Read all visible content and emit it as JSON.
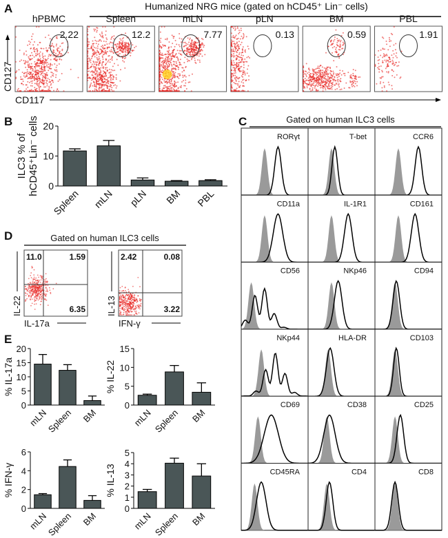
{
  "panel_labels": {
    "a": "A",
    "b": "B",
    "c": "C",
    "d": "D",
    "e": "E"
  },
  "panel_a": {
    "group_title": "Humanized NRG mice (gated on hCD45⁺ Lin⁻ cells)",
    "x_axis": "CD117",
    "y_axis": "CD127",
    "plots": [
      {
        "label": "hPBMC",
        "gate_percent": "2.22"
      },
      {
        "label": "Spleen",
        "gate_percent": "12.2"
      },
      {
        "label": "mLN",
        "gate_percent": "7.77"
      },
      {
        "label": "pLN",
        "gate_percent": "0.13"
      },
      {
        "label": "BM",
        "gate_percent": "0.59"
      },
      {
        "label": "PBL",
        "gate_percent": "1.91"
      }
    ]
  },
  "panel_c": {
    "title": "Gated on human ILC3 cells",
    "markers": [
      "RORγt",
      "T-bet",
      "CCR6",
      "CD11a",
      "IL-1R1",
      "CD161",
      "CD56",
      "NKp46",
      "CD94",
      "NKp44",
      "HLA-DR",
      "CD103",
      "CD69",
      "CD38",
      "CD25",
      "CD45RA",
      "CD4",
      "CD8"
    ]
  },
  "panel_d": {
    "title": "Gated on human ILC3 cells",
    "plots": [
      {
        "x_axis": "IL-17a",
        "y_axis": "IL-22",
        "quadrants": {
          "ul": "11.0",
          "ur": "1.59",
          "lr": "6.35"
        }
      },
      {
        "x_axis": "IFN-γ",
        "y_axis": "IL-13",
        "quadrants": {
          "ul": "2.42",
          "ur": "0.08",
          "lr": "3.22"
        }
      }
    ]
  },
  "colors": {
    "bar": "#4a5657",
    "flow_dots": "#e8231f",
    "histogram_fill": "#9a9a9a"
  },
  "chart_data": [
    {
      "id": "B",
      "type": "bar",
      "categories": [
        "Spleen",
        "mLN",
        "pLN",
        "BM",
        "PBL"
      ],
      "values": [
        11.7,
        13.4,
        2.0,
        1.6,
        1.8
      ],
      "errors": [
        0.7,
        1.8,
        0.7,
        0.2,
        0.3
      ],
      "ylabel": [
        "ILC3 % of",
        "hCD45⁺Lin⁻ cells"
      ],
      "ylim": [
        0,
        20
      ],
      "yticks": [
        "0",
        "10",
        "20"
      ]
    },
    {
      "id": "E1",
      "type": "bar",
      "categories": [
        "mLN",
        "Spleen",
        "BM"
      ],
      "values": [
        14.5,
        12.3,
        1.6
      ],
      "errors": [
        3.4,
        2.0,
        1.6
      ],
      "ylabel": [
        "% IL-17a"
      ],
      "ylim": [
        0,
        20
      ],
      "yticks": [
        "0",
        "5",
        "10",
        "15",
        "20"
      ]
    },
    {
      "id": "E2",
      "type": "bar",
      "categories": [
        "mLN",
        "Spleen",
        "BM"
      ],
      "values": [
        2.6,
        8.8,
        3.4
      ],
      "errors": [
        0.3,
        1.7,
        2.5
      ],
      "ylabel": [
        "% IL-22"
      ],
      "ylim": [
        0,
        15
      ],
      "yticks": [
        "0",
        "5",
        "10",
        "15"
      ]
    },
    {
      "id": "E3",
      "type": "bar",
      "categories": [
        "mLN",
        "Spleen",
        "BM"
      ],
      "values": [
        1.45,
        4.45,
        0.85
      ],
      "errors": [
        0.12,
        0.7,
        0.5
      ],
      "ylabel": [
        "% IFN-γ"
      ],
      "ylim": [
        0,
        6
      ],
      "yticks": [
        "0",
        "2",
        "4",
        "6"
      ]
    },
    {
      "id": "E4",
      "type": "bar",
      "categories": [
        "mLN",
        "Spleen",
        "BM"
      ],
      "values": [
        1.5,
        4.05,
        2.9
      ],
      "errors": [
        0.2,
        0.45,
        1.1
      ],
      "ylabel": [
        "% IL-13"
      ],
      "ylim": [
        0,
        5
      ],
      "yticks": [
        "0",
        "1",
        "2",
        "3",
        "4",
        "5"
      ]
    }
  ]
}
